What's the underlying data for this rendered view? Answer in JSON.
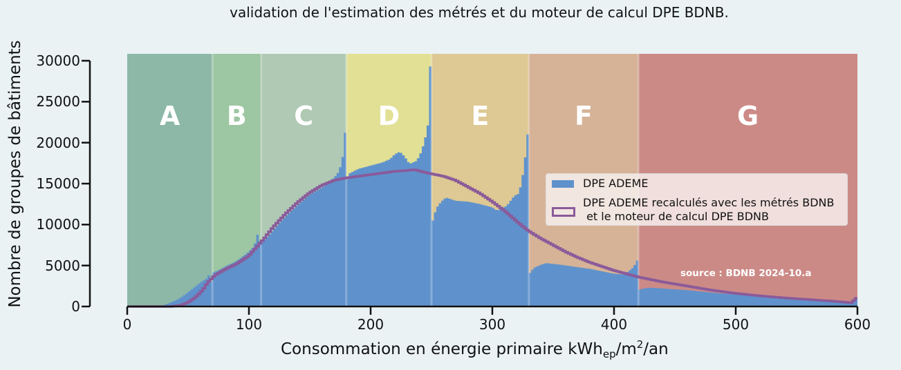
{
  "chart_data": {
    "type": "bar",
    "title": "validation de l'estimation des métrés et du moteur de calcul DPE BDNB.",
    "xlabel": "Consommation en énergie primaire kWh_ep/m²/an",
    "xlabel_parts": {
      "main": "Consommation en énergie primaire kWh",
      "sub": "ep",
      "mid": "/m",
      "sup": "2",
      "end": "/an"
    },
    "ylabel": "Nombre de groupes de bâtiments",
    "xlim": [
      0,
      600
    ],
    "ylim": [
      0,
      30000
    ],
    "xticks": [
      0,
      100,
      200,
      300,
      400,
      500,
      600
    ],
    "yticks": [
      0,
      5000,
      10000,
      15000,
      20000,
      25000,
      30000
    ],
    "grid": false,
    "legend_position": "center right",
    "bin_width": 2,
    "annotation": "source : BDNB 2024-10.a",
    "bands": [
      {
        "label": "A",
        "from": 0,
        "to": 70,
        "color": "#8db8a8"
      },
      {
        "label": "B",
        "from": 70,
        "to": 110,
        "color": "#9dc6a2"
      },
      {
        "label": "C",
        "from": 110,
        "to": 180,
        "color": "#b0c9b4"
      },
      {
        "label": "D",
        "from": 180,
        "to": 250,
        "color": "#e2e095"
      },
      {
        "label": "E",
        "from": 250,
        "to": 330,
        "color": "#dec893"
      },
      {
        "label": "F",
        "from": 330,
        "to": 420,
        "color": "#d6b397"
      },
      {
        "label": "G",
        "from": 420,
        "to": 600,
        "color": "#cc8a86"
      }
    ],
    "series": [
      {
        "name": "DPE ADEME",
        "style": "filled histogram",
        "color": "#5f92cc",
        "anchors": [
          [
            0,
            0
          ],
          [
            26,
            0
          ],
          [
            30,
            150
          ],
          [
            36,
            500
          ],
          [
            42,
            900
          ],
          [
            48,
            1500
          ],
          [
            54,
            2200
          ],
          [
            60,
            2900
          ],
          [
            66,
            3500
          ],
          [
            68,
            4100
          ],
          [
            69,
            3000
          ],
          [
            70,
            4100
          ],
          [
            76,
            4500
          ],
          [
            82,
            5000
          ],
          [
            88,
            5400
          ],
          [
            94,
            6000
          ],
          [
            100,
            6700
          ],
          [
            104,
            7300
          ],
          [
            106,
            8100
          ],
          [
            108,
            9400
          ],
          [
            109,
            8000
          ],
          [
            110,
            7800
          ],
          [
            116,
            8600
          ],
          [
            122,
            9700
          ],
          [
            130,
            11000
          ],
          [
            140,
            12400
          ],
          [
            150,
            13700
          ],
          [
            160,
            14500
          ],
          [
            166,
            15200
          ],
          [
            170,
            15700
          ],
          [
            174,
            16500
          ],
          [
            176,
            17500
          ],
          [
            178,
            19000
          ],
          [
            179,
            21200
          ],
          [
            180,
            14900
          ],
          [
            182,
            16200
          ],
          [
            190,
            16800
          ],
          [
            200,
            17200
          ],
          [
            210,
            17600
          ],
          [
            216,
            18000
          ],
          [
            220,
            18600
          ],
          [
            224,
            18900
          ],
          [
            228,
            18300
          ],
          [
            232,
            17400
          ],
          [
            238,
            17800
          ],
          [
            242,
            19000
          ],
          [
            246,
            21200
          ],
          [
            248,
            23000
          ],
          [
            249,
            29300
          ],
          [
            250,
            10000
          ],
          [
            254,
            12000
          ],
          [
            258,
            12800
          ],
          [
            262,
            13300
          ],
          [
            270,
            12900
          ],
          [
            280,
            12800
          ],
          [
            290,
            12500
          ],
          [
            300,
            12100
          ],
          [
            304,
            11700
          ],
          [
            312,
            12300
          ],
          [
            318,
            13500
          ],
          [
            322,
            13800
          ],
          [
            326,
            16800
          ],
          [
            329,
            21000
          ],
          [
            330,
            3900
          ],
          [
            334,
            4700
          ],
          [
            340,
            5100
          ],
          [
            344,
            5300
          ],
          [
            356,
            5100
          ],
          [
            370,
            4800
          ],
          [
            380,
            4600
          ],
          [
            390,
            4300
          ],
          [
            400,
            4000
          ],
          [
            408,
            3900
          ],
          [
            412,
            4300
          ],
          [
            416,
            4800
          ],
          [
            419,
            5600
          ],
          [
            420,
            2000
          ],
          [
            424,
            2200
          ],
          [
            430,
            2300
          ],
          [
            440,
            2200
          ],
          [
            460,
            2000
          ],
          [
            480,
            1700
          ],
          [
            500,
            1450
          ],
          [
            520,
            1250
          ],
          [
            540,
            1050
          ],
          [
            560,
            850
          ],
          [
            580,
            650
          ],
          [
            596,
            600
          ],
          [
            598,
            900
          ],
          [
            600,
            900
          ]
        ]
      },
      {
        "name": "DPE ADEME recalculés avec les métrés BDNB\n et le moteur de calcul DPE BDNB",
        "style": "step line",
        "color": "#8a5a9a",
        "anchors": [
          [
            0,
            0
          ],
          [
            36,
            0
          ],
          [
            44,
            150
          ],
          [
            50,
            500
          ],
          [
            56,
            1100
          ],
          [
            62,
            2000
          ],
          [
            66,
            2900
          ],
          [
            72,
            3800
          ],
          [
            80,
            4500
          ],
          [
            90,
            5200
          ],
          [
            100,
            6200
          ],
          [
            106,
            7200
          ],
          [
            112,
            8200
          ],
          [
            120,
            9700
          ],
          [
            130,
            11300
          ],
          [
            140,
            12700
          ],
          [
            150,
            13900
          ],
          [
            160,
            14800
          ],
          [
            170,
            15400
          ],
          [
            180,
            15700
          ],
          [
            190,
            15900
          ],
          [
            200,
            16100
          ],
          [
            210,
            16300
          ],
          [
            220,
            16500
          ],
          [
            230,
            16600
          ],
          [
            236,
            16700
          ],
          [
            244,
            16400
          ],
          [
            250,
            16200
          ],
          [
            260,
            15900
          ],
          [
            270,
            15400
          ],
          [
            280,
            14600
          ],
          [
            290,
            13800
          ],
          [
            300,
            12800
          ],
          [
            310,
            11700
          ],
          [
            320,
            10400
          ],
          [
            330,
            9200
          ],
          [
            340,
            8300
          ],
          [
            350,
            7500
          ],
          [
            360,
            6700
          ],
          [
            370,
            6000
          ],
          [
            380,
            5400
          ],
          [
            390,
            4900
          ],
          [
            400,
            4400
          ],
          [
            410,
            4000
          ],
          [
            420,
            3600
          ],
          [
            430,
            3300
          ],
          [
            440,
            3000
          ],
          [
            460,
            2500
          ],
          [
            480,
            2000
          ],
          [
            500,
            1600
          ],
          [
            520,
            1300
          ],
          [
            540,
            1050
          ],
          [
            560,
            850
          ],
          [
            580,
            650
          ],
          [
            596,
            450
          ],
          [
            598,
            1000
          ],
          [
            600,
            1000
          ]
        ]
      }
    ]
  },
  "legend": {
    "items": [
      {
        "label": "DPE ADEME",
        "swatch": "fill",
        "color": "#5f92cc"
      },
      {
        "label": "DPE ADEME recalculés avec les métrés BDNB\n et le moteur de calcul DPE BDNB",
        "swatch": "outline",
        "color": "#8a5a9a"
      }
    ]
  },
  "colors": {
    "background": "#eaf2f4",
    "axis": "#111111",
    "class_divider": "rgba(255,255,255,0.25)"
  }
}
